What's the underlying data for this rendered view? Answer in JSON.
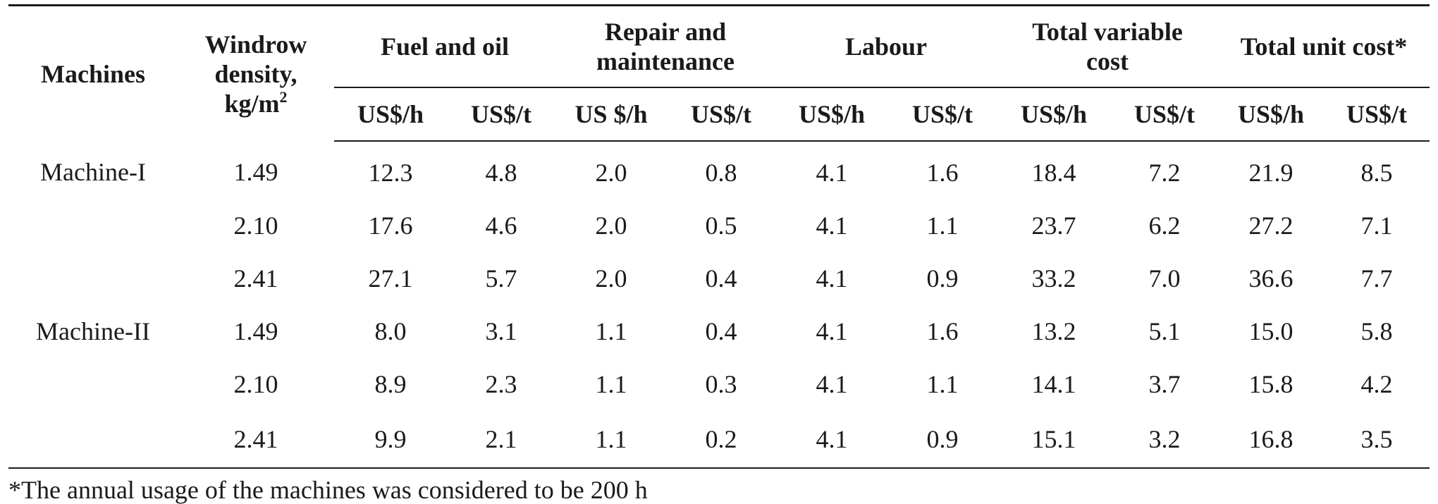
{
  "table": {
    "header_machines": "Machines",
    "header_density_line1": "Windrow",
    "header_density_line2": "density,",
    "header_density_line3": "kg/m",
    "header_density_sup": "2",
    "groups": [
      {
        "line1": "Fuel and oil",
        "line2": ""
      },
      {
        "line1": "Repair and",
        "line2": "maintenance"
      },
      {
        "line1": "Labour",
        "line2": ""
      },
      {
        "line1": "Total variable",
        "line2": "cost"
      },
      {
        "line1": "Total unit cost*",
        "line2": ""
      }
    ],
    "units": [
      "US$/h",
      "US$/t",
      "US $/h",
      "US$/t",
      "US$/h",
      "US$/t",
      "US$/h",
      "US$/t",
      "US$/h",
      "US$/t"
    ],
    "rows": [
      {
        "machine": "Machine-I",
        "density": "1.49",
        "values": [
          "12.3",
          "4.8",
          "2.0",
          "0.8",
          "4.1",
          "1.6",
          "18.4",
          "7.2",
          "21.9",
          "8.5"
        ]
      },
      {
        "machine": "",
        "density": "2.10",
        "values": [
          "17.6",
          "4.6",
          "2.0",
          "0.5",
          "4.1",
          "1.1",
          "23.7",
          "6.2",
          "27.2",
          "7.1"
        ]
      },
      {
        "machine": "",
        "density": "2.41",
        "values": [
          "27.1",
          "5.7",
          "2.0",
          "0.4",
          "4.1",
          "0.9",
          "33.2",
          "7.0",
          "36.6",
          "7.7"
        ]
      },
      {
        "machine": "Machine-II",
        "density": "1.49",
        "values": [
          "8.0",
          "3.1",
          "1.1",
          "0.4",
          "4.1",
          "1.6",
          "13.2",
          "5.1",
          "15.0",
          "5.8"
        ]
      },
      {
        "machine": "",
        "density": "2.10",
        "values": [
          "8.9",
          "2.3",
          "1.1",
          "0.3",
          "4.1",
          "1.1",
          "14.1",
          "3.7",
          "15.8",
          "4.2"
        ]
      },
      {
        "machine": "",
        "density": "2.41",
        "values": [
          "9.9",
          "2.1",
          "1.1",
          "0.2",
          "4.1",
          "0.9",
          "15.1",
          "3.2",
          "16.8",
          "3.5"
        ]
      }
    ]
  },
  "footnote": "*The annual usage of the machines was considered to be 200 h"
}
